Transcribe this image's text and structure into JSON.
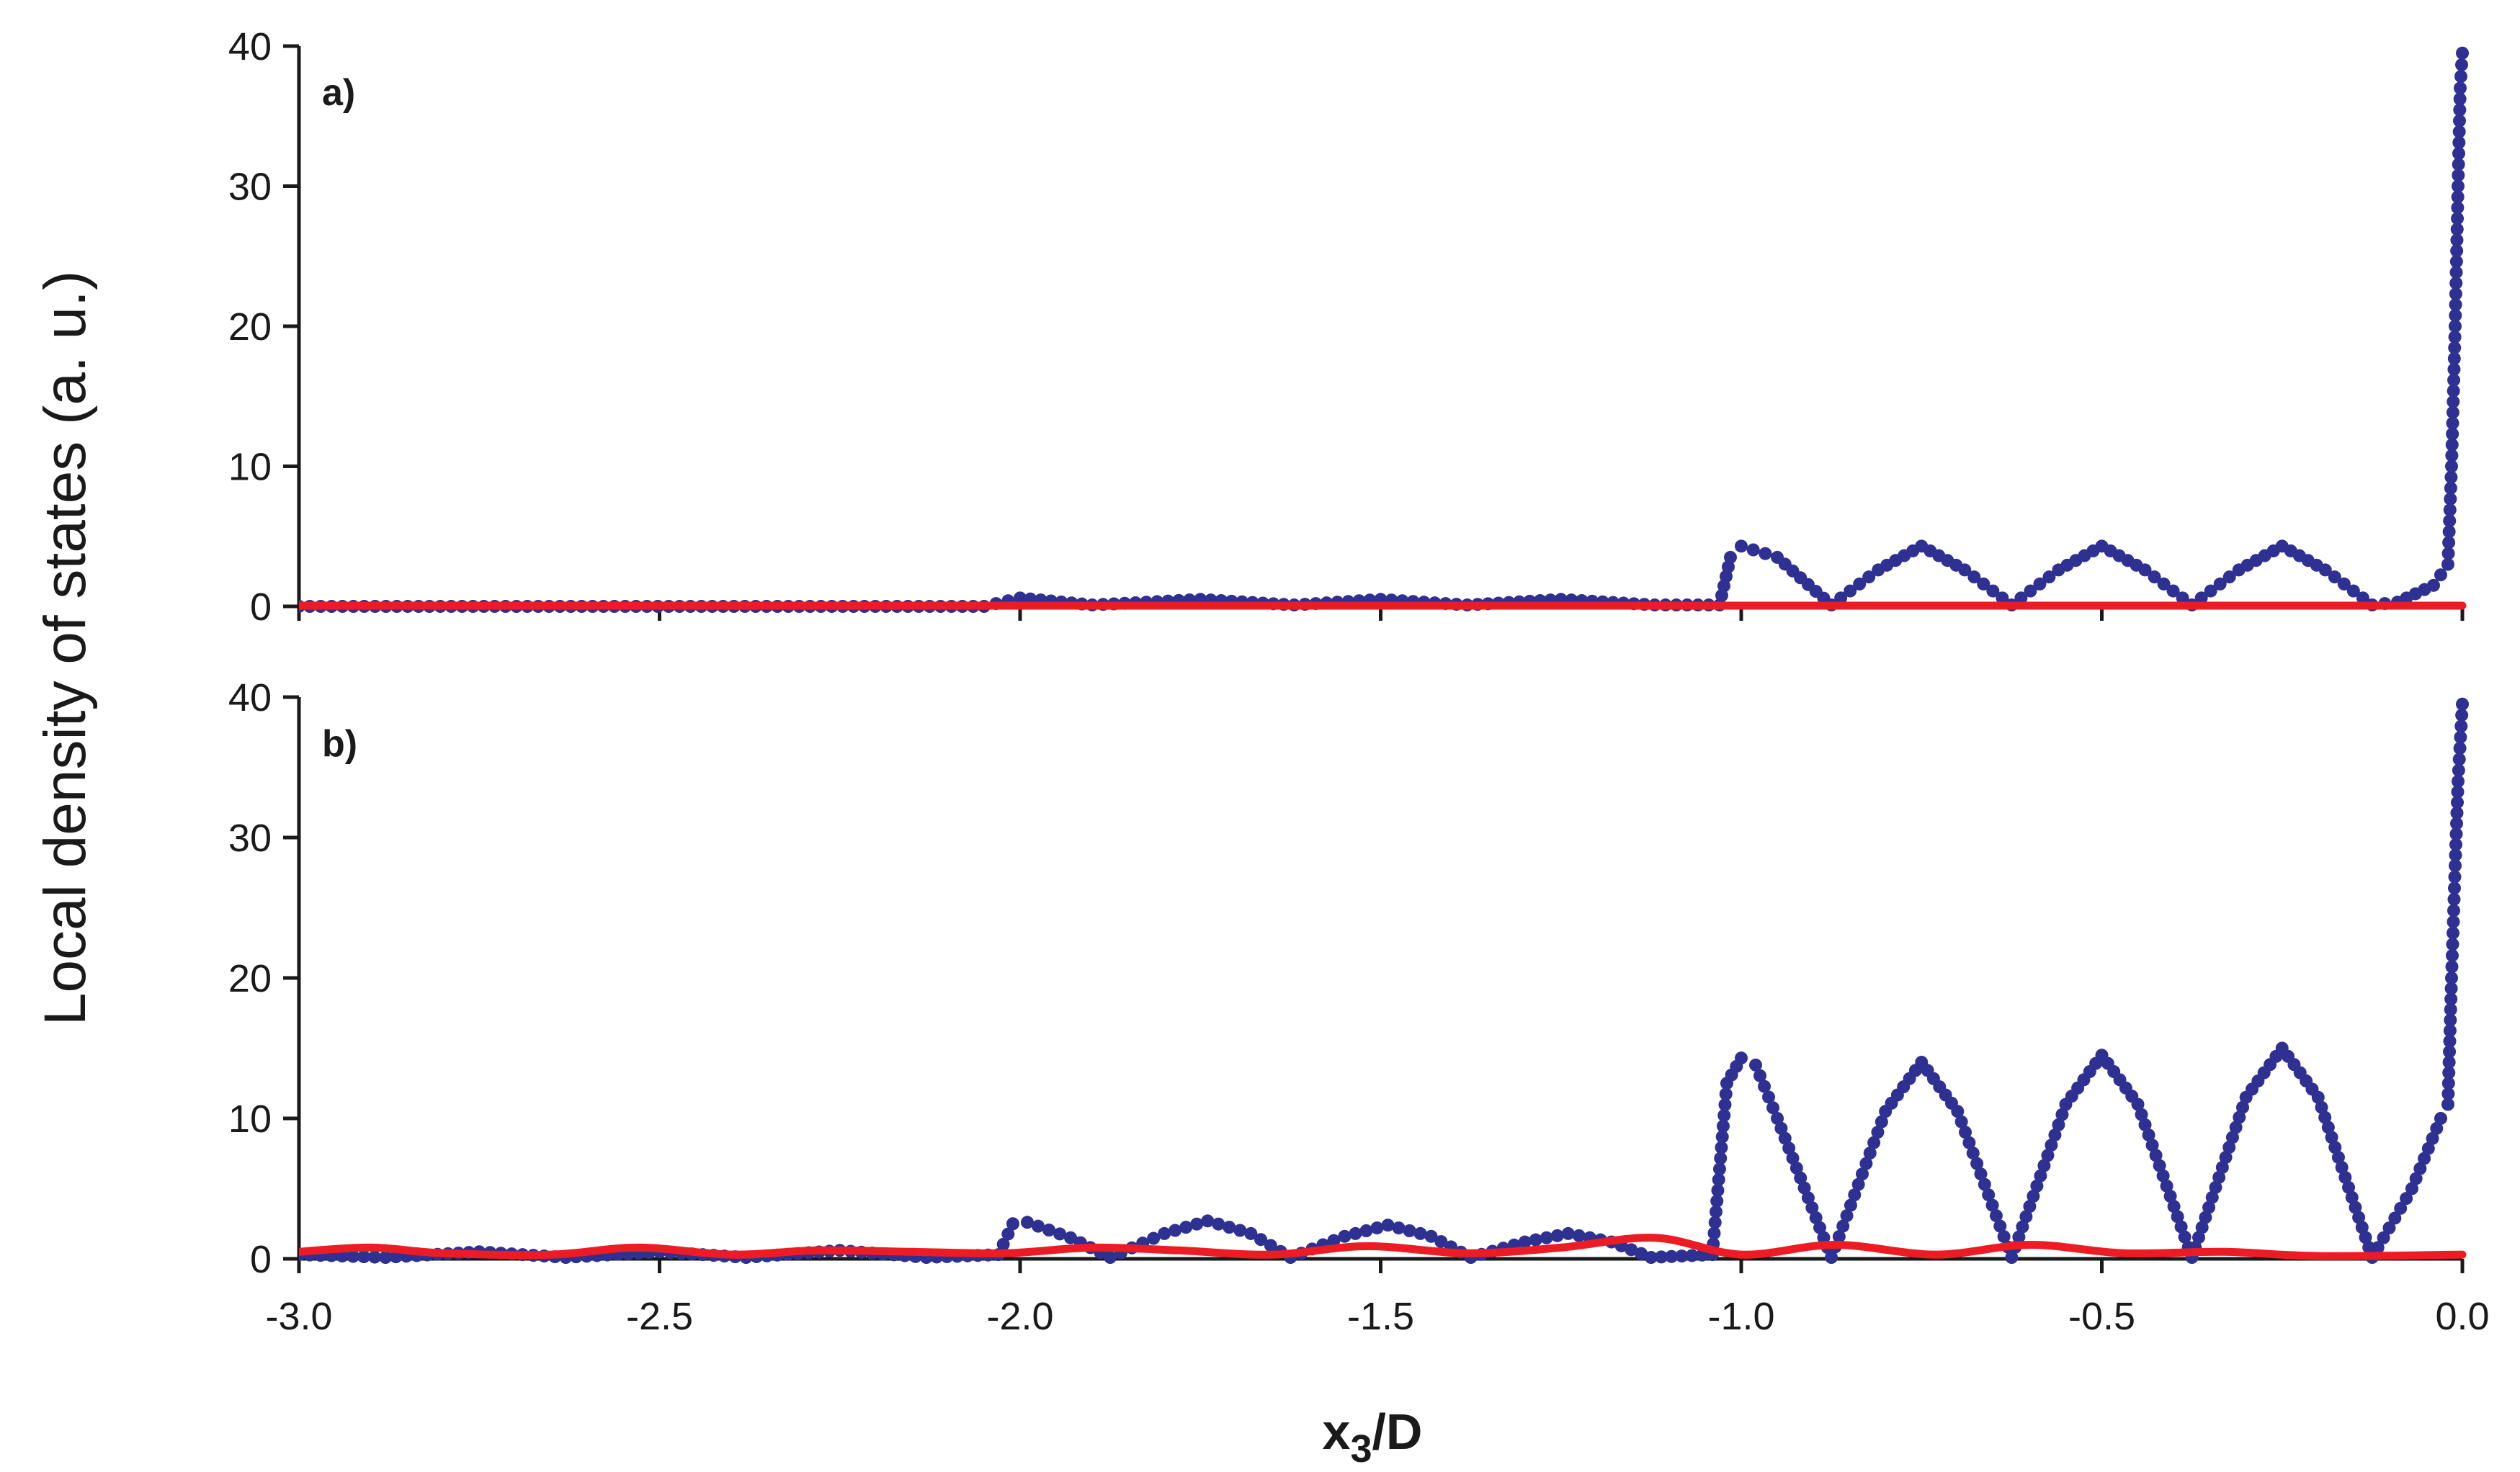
{
  "figure": {
    "ylabel": "Local density of states (a. u.)",
    "xlabel_main": "x",
    "xlabel_sub": "3",
    "xlabel_tail": "/D"
  },
  "chart_data": [
    {
      "type": "scatter",
      "panel_label": "a)",
      "xlim": [
        -3.0,
        0.0
      ],
      "ylim": [
        0,
        40
      ],
      "yticks": [
        "0",
        "10",
        "20",
        "30",
        "40"
      ],
      "xticks": [],
      "grid": false,
      "legend": "none",
      "series": [
        {
          "style": "dots",
          "color": "#2E3192",
          "points": [
            [
              -3.0,
              0
            ],
            [
              -2.05,
              0
            ],
            [
              -2.0,
              0.6
            ],
            [
              -1.9,
              0.1
            ],
            [
              -1.75,
              0.5
            ],
            [
              -1.62,
              0.1
            ],
            [
              -1.5,
              0.5
            ],
            [
              -1.38,
              0.1
            ],
            [
              -1.25,
              0.5
            ],
            [
              -1.12,
              0.1
            ],
            [
              -1.03,
              0.1
            ],
            [
              -1.015,
              3.5
            ],
            [
              -1.0,
              4.3
            ],
            [
              -0.95,
              3.5
            ],
            [
              -0.875,
              0.1
            ],
            [
              -0.81,
              2.6
            ],
            [
              -0.75,
              4.3
            ],
            [
              -0.69,
              2.6
            ],
            [
              -0.625,
              0.1
            ],
            [
              -0.56,
              2.6
            ],
            [
              -0.5,
              4.3
            ],
            [
              -0.44,
              2.6
            ],
            [
              -0.375,
              0.1
            ],
            [
              -0.31,
              2.6
            ],
            [
              -0.25,
              4.3
            ],
            [
              -0.19,
              2.6
            ],
            [
              -0.125,
              0.1
            ],
            [
              -0.09,
              0.3
            ],
            [
              -0.04,
              1.5
            ],
            [
              -0.02,
              3.0
            ],
            [
              -0.015,
              10
            ],
            [
              -0.01,
              20
            ],
            [
              -0.006,
              30
            ],
            [
              -0.003,
              37
            ],
            [
              0.0,
              39.5
            ]
          ]
        },
        {
          "style": "line",
          "color": "#ED1C24",
          "points": [
            [
              -3.0,
              0.05
            ],
            [
              -1.5,
              0.05
            ],
            [
              0.0,
              0.05
            ]
          ]
        }
      ]
    },
    {
      "type": "scatter",
      "panel_label": "b)",
      "xlim": [
        -3.0,
        0.0
      ],
      "ylim": [
        0,
        40
      ],
      "yticks": [
        "0",
        "10",
        "20",
        "30",
        "40"
      ],
      "xticks": [
        "-3.0",
        "-2.5",
        "-2.0",
        "-1.5",
        "-1.0",
        "-0.5",
        "0.0"
      ],
      "grid": false,
      "legend": "none",
      "series": [
        {
          "style": "dots",
          "color": "#2E3192",
          "points": [
            [
              -3.0,
              0.3
            ],
            [
              -2.88,
              0.1
            ],
            [
              -2.75,
              0.5
            ],
            [
              -2.63,
              0.1
            ],
            [
              -2.5,
              0.5
            ],
            [
              -2.38,
              0.1
            ],
            [
              -2.25,
              0.6
            ],
            [
              -2.13,
              0.1
            ],
            [
              -2.03,
              0.3
            ],
            [
              -2.01,
              2.5
            ],
            [
              -1.99,
              2.6
            ],
            [
              -1.93,
              1.5
            ],
            [
              -1.875,
              0.1
            ],
            [
              -1.8,
              1.8
            ],
            [
              -1.74,
              2.7
            ],
            [
              -1.68,
              1.8
            ],
            [
              -1.625,
              0.1
            ],
            [
              -1.55,
              1.6
            ],
            [
              -1.49,
              2.4
            ],
            [
              -1.43,
              1.6
            ],
            [
              -1.375,
              0.1
            ],
            [
              -1.3,
              1.2
            ],
            [
              -1.24,
              1.8
            ],
            [
              -1.18,
              1.2
            ],
            [
              -1.125,
              0.1
            ],
            [
              -1.04,
              0.3
            ],
            [
              -1.02,
              12.5
            ],
            [
              -1.0,
              14.3
            ],
            [
              -0.98,
              13.8
            ],
            [
              -0.95,
              10.0
            ],
            [
              -0.875,
              0.1
            ],
            [
              -0.8,
              10.5
            ],
            [
              -0.75,
              14.0
            ],
            [
              -0.7,
              10.5
            ],
            [
              -0.625,
              0.1
            ],
            [
              -0.55,
              11.0
            ],
            [
              -0.5,
              14.5
            ],
            [
              -0.45,
              11.0
            ],
            [
              -0.375,
              0.1
            ],
            [
              -0.3,
              11.5
            ],
            [
              -0.25,
              15.0
            ],
            [
              -0.2,
              11.5
            ],
            [
              -0.125,
              0.1
            ],
            [
              -0.07,
              5.0
            ],
            [
              -0.03,
              10.0
            ],
            [
              -0.02,
              11.0
            ],
            [
              -0.015,
              20
            ],
            [
              -0.01,
              28
            ],
            [
              -0.006,
              34
            ],
            [
              0.0,
              39.5
            ]
          ]
        },
        {
          "style": "line",
          "color": "#ED1C24",
          "points": [
            [
              -3.0,
              0.5
            ],
            [
              -2.9,
              0.8
            ],
            [
              -2.8,
              0.4
            ],
            [
              -2.65,
              0.3
            ],
            [
              -2.53,
              0.8
            ],
            [
              -2.4,
              0.3
            ],
            [
              -2.28,
              0.6
            ],
            [
              -2.15,
              0.5
            ],
            [
              -2.02,
              0.4
            ],
            [
              -1.9,
              0.8
            ],
            [
              -1.78,
              0.6
            ],
            [
              -1.65,
              0.3
            ],
            [
              -1.52,
              0.9
            ],
            [
              -1.38,
              0.4
            ],
            [
              -1.25,
              0.8
            ],
            [
              -1.12,
              1.5
            ],
            [
              -1.0,
              0.3
            ],
            [
              -0.87,
              1.0
            ],
            [
              -0.73,
              0.3
            ],
            [
              -0.6,
              1.0
            ],
            [
              -0.47,
              0.4
            ],
            [
              -0.33,
              0.5
            ],
            [
              -0.2,
              0.2
            ],
            [
              0.0,
              0.3
            ]
          ]
        }
      ]
    }
  ]
}
